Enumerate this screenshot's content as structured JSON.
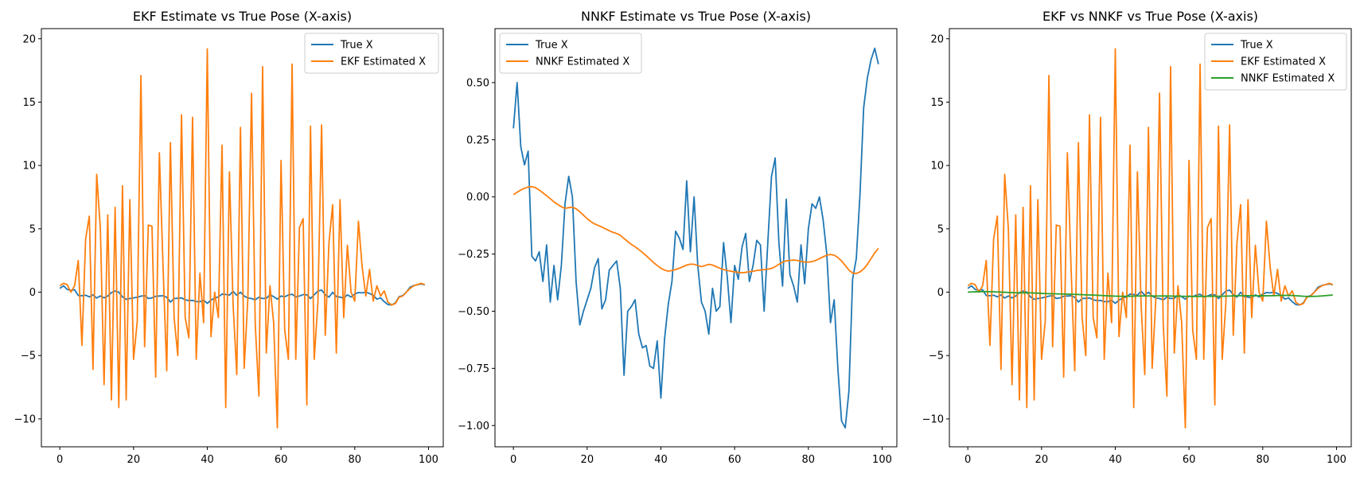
{
  "colors": {
    "true": "#1f77b4",
    "ekf": "#ff7f0e",
    "nnkf": "#2ca02c"
  },
  "chart_data": [
    {
      "type": "line",
      "title": "EKF Estimate vs True Pose (X-axis)",
      "xlim": [
        -5,
        104
      ],
      "ylim": [
        -12.2,
        20.8
      ],
      "xticks": [
        0,
        20,
        40,
        60,
        80,
        100
      ],
      "yticks": [
        -10,
        -5,
        0,
        5,
        10,
        15,
        20
      ],
      "xticklabels": [
        "0",
        "20",
        "40",
        "60",
        "80",
        "100"
      ],
      "yticklabels": [
        "−10",
        "−5",
        "0",
        "5",
        "10",
        "15",
        "20"
      ],
      "legend": "top-right",
      "series": [
        {
          "name": "True X",
          "color_key": "true",
          "values": [
            0.3,
            0.5,
            0.22,
            0.14,
            0.2,
            -0.26,
            -0.28,
            -0.24,
            -0.37,
            -0.21,
            -0.46,
            -0.3,
            -0.45,
            -0.3,
            -0.03,
            0.09,
            0.0,
            -0.37,
            -0.56,
            -0.5,
            -0.45,
            -0.4,
            -0.31,
            -0.27,
            -0.49,
            -0.45,
            -0.32,
            -0.3,
            -0.28,
            -0.4,
            -0.78,
            -0.5,
            -0.48,
            -0.45,
            -0.6,
            -0.66,
            -0.65,
            -0.74,
            -0.75,
            -0.63,
            -0.88,
            -0.62,
            -0.47,
            -0.37,
            -0.15,
            -0.18,
            -0.23,
            0.07,
            -0.24,
            0.0,
            -0.3,
            -0.46,
            -0.5,
            -0.6,
            -0.4,
            -0.5,
            -0.48,
            -0.2,
            -0.35,
            -0.55,
            -0.3,
            -0.36,
            -0.22,
            -0.16,
            -0.37,
            -0.3,
            -0.19,
            -0.21,
            -0.5,
            -0.2,
            0.09,
            0.17,
            -0.2,
            -0.39,
            -0.01,
            -0.34,
            -0.39,
            -0.46,
            -0.21,
            -0.38,
            -0.14,
            -0.03,
            -0.05,
            0.0,
            -0.1,
            -0.25,
            -0.55,
            -0.45,
            -0.75,
            -0.98,
            -1.01,
            -0.85,
            -0.36,
            -0.27,
            0.01,
            0.39,
            0.52,
            0.6,
            0.65,
            0.58
          ]
        },
        {
          "name": "EKF Estimated X",
          "color_key": "ekf",
          "values": [
            0.5,
            0.7,
            0.6,
            0.0,
            0.5,
            2.5,
            -4.2,
            4.2,
            6.0,
            -6.1,
            9.3,
            5.0,
            -7.3,
            6.1,
            -8.5,
            6.7,
            -9.1,
            8.4,
            -8.5,
            7.3,
            -5.3,
            -2.3,
            17.1,
            -4.3,
            5.3,
            5.2,
            -6.7,
            11.0,
            2.0,
            -6.2,
            11.8,
            -2.0,
            -5.0,
            14.0,
            -2.0,
            -3.6,
            13.8,
            -5.3,
            1.5,
            -2.4,
            19.2,
            -3.5,
            0.0,
            -2.0,
            11.6,
            -9.1,
            9.5,
            -1.0,
            -6.5,
            13.0,
            -6.0,
            -0.5,
            15.7,
            -2.5,
            -8.2,
            17.8,
            -4.8,
            0.5,
            -2.4,
            -10.7,
            10.4,
            -3.0,
            -5.3,
            18.0,
            -5.3,
            5.1,
            5.8,
            -8.9,
            13.1,
            -5.3,
            -0.8,
            13.2,
            -3.4,
            3.9,
            6.9,
            -4.8,
            7.3,
            -2.0,
            3.7,
            0.0,
            -0.7,
            5.6,
            2.0,
            -0.3,
            1.8,
            -0.7,
            0.5,
            -0.3,
            0.1,
            -0.8,
            -1.0,
            -0.9,
            -0.4,
            -0.3,
            0.0,
            0.3,
            0.5,
            0.6,
            0.7,
            0.6
          ]
        }
      ]
    },
    {
      "type": "line",
      "title": "NNKF Estimate vs True Pose (X-axis)",
      "xlim": [
        -5,
        104
      ],
      "ylim": [
        -1.093,
        0.736
      ],
      "xticks": [
        0,
        20,
        40,
        60,
        80,
        100
      ],
      "yticks": [
        -1.0,
        -0.75,
        -0.5,
        -0.25,
        0.0,
        0.25,
        0.5
      ],
      "xticklabels": [
        "0",
        "20",
        "40",
        "60",
        "80",
        "100"
      ],
      "yticklabels": [
        "−1.00",
        "−0.75",
        "−0.50",
        "−0.25",
        "0.00",
        "0.25",
        "0.50"
      ],
      "legend": "top-left",
      "series": [
        {
          "name": "True X",
          "color_key": "true",
          "values": [
            0.3,
            0.5,
            0.22,
            0.14,
            0.2,
            -0.26,
            -0.28,
            -0.24,
            -0.37,
            -0.21,
            -0.46,
            -0.3,
            -0.45,
            -0.3,
            -0.03,
            0.09,
            0.0,
            -0.37,
            -0.56,
            -0.5,
            -0.45,
            -0.4,
            -0.31,
            -0.27,
            -0.49,
            -0.45,
            -0.32,
            -0.3,
            -0.28,
            -0.4,
            -0.78,
            -0.5,
            -0.48,
            -0.45,
            -0.6,
            -0.66,
            -0.65,
            -0.74,
            -0.75,
            -0.63,
            -0.88,
            -0.62,
            -0.47,
            -0.37,
            -0.15,
            -0.18,
            -0.23,
            0.07,
            -0.24,
            0.0,
            -0.3,
            -0.46,
            -0.5,
            -0.6,
            -0.4,
            -0.5,
            -0.48,
            -0.2,
            -0.35,
            -0.55,
            -0.3,
            -0.36,
            -0.22,
            -0.16,
            -0.37,
            -0.3,
            -0.19,
            -0.21,
            -0.5,
            -0.2,
            0.09,
            0.17,
            -0.2,
            -0.39,
            -0.01,
            -0.34,
            -0.39,
            -0.46,
            -0.21,
            -0.38,
            -0.14,
            -0.03,
            -0.05,
            0.0,
            -0.1,
            -0.25,
            -0.55,
            -0.45,
            -0.75,
            -0.98,
            -1.01,
            -0.85,
            -0.36,
            -0.27,
            0.01,
            0.39,
            0.52,
            0.6,
            0.65,
            0.58
          ]
        },
        {
          "name": "NNKF Estimated X",
          "color_key": "ekf",
          "values": [
            0.01,
            0.02,
            0.03,
            0.038,
            0.043,
            0.045,
            0.04,
            0.03,
            0.018,
            0.005,
            -0.008,
            -0.022,
            -0.033,
            -0.043,
            -0.05,
            -0.047,
            -0.045,
            -0.052,
            -0.065,
            -0.08,
            -0.095,
            -0.108,
            -0.118,
            -0.125,
            -0.132,
            -0.14,
            -0.148,
            -0.155,
            -0.16,
            -0.168,
            -0.182,
            -0.195,
            -0.208,
            -0.218,
            -0.23,
            -0.243,
            -0.257,
            -0.272,
            -0.287,
            -0.3,
            -0.312,
            -0.32,
            -0.325,
            -0.322,
            -0.318,
            -0.312,
            -0.305,
            -0.298,
            -0.294,
            -0.295,
            -0.3,
            -0.305,
            -0.3,
            -0.295,
            -0.298,
            -0.305,
            -0.312,
            -0.318,
            -0.322,
            -0.325,
            -0.328,
            -0.33,
            -0.332,
            -0.33,
            -0.327,
            -0.325,
            -0.322,
            -0.32,
            -0.318,
            -0.316,
            -0.313,
            -0.305,
            -0.295,
            -0.285,
            -0.28,
            -0.278,
            -0.276,
            -0.278,
            -0.282,
            -0.285,
            -0.285,
            -0.283,
            -0.278,
            -0.27,
            -0.262,
            -0.255,
            -0.252,
            -0.255,
            -0.265,
            -0.28,
            -0.3,
            -0.32,
            -0.333,
            -0.335,
            -0.328,
            -0.315,
            -0.295,
            -0.27,
            -0.245,
            -0.225
          ]
        }
      ]
    },
    {
      "type": "line",
      "title": "EKF vs NNKF vs True Pose (X-axis)",
      "xlim": [
        -5,
        104
      ],
      "ylim": [
        -12.2,
        20.8
      ],
      "xticks": [
        0,
        20,
        40,
        60,
        80,
        100
      ],
      "yticks": [
        -10,
        -5,
        0,
        5,
        10,
        15,
        20
      ],
      "xticklabels": [
        "0",
        "20",
        "40",
        "60",
        "80",
        "100"
      ],
      "yticklabels": [
        "−10",
        "−5",
        "0",
        "5",
        "10",
        "15",
        "20"
      ],
      "legend": "top-right",
      "series": [
        {
          "name": "True X",
          "color_key": "true",
          "values": [
            0.3,
            0.5,
            0.22,
            0.14,
            0.2,
            -0.26,
            -0.28,
            -0.24,
            -0.37,
            -0.21,
            -0.46,
            -0.3,
            -0.45,
            -0.3,
            -0.03,
            0.09,
            0.0,
            -0.37,
            -0.56,
            -0.5,
            -0.45,
            -0.4,
            -0.31,
            -0.27,
            -0.49,
            -0.45,
            -0.32,
            -0.3,
            -0.28,
            -0.4,
            -0.78,
            -0.5,
            -0.48,
            -0.45,
            -0.6,
            -0.66,
            -0.65,
            -0.74,
            -0.75,
            -0.63,
            -0.88,
            -0.62,
            -0.47,
            -0.37,
            -0.15,
            -0.18,
            -0.23,
            0.07,
            -0.24,
            0.0,
            -0.3,
            -0.46,
            -0.5,
            -0.6,
            -0.4,
            -0.5,
            -0.48,
            -0.2,
            -0.35,
            -0.55,
            -0.3,
            -0.36,
            -0.22,
            -0.16,
            -0.37,
            -0.3,
            -0.19,
            -0.21,
            -0.5,
            -0.2,
            0.09,
            0.17,
            -0.2,
            -0.39,
            -0.01,
            -0.34,
            -0.39,
            -0.46,
            -0.21,
            -0.38,
            -0.14,
            -0.03,
            -0.05,
            0.0,
            -0.1,
            -0.25,
            -0.55,
            -0.45,
            -0.75,
            -0.98,
            -1.01,
            -0.85,
            -0.36,
            -0.27,
            0.01,
            0.39,
            0.52,
            0.6,
            0.65,
            0.58
          ]
        },
        {
          "name": "EKF Estimated X",
          "color_key": "ekf",
          "values": [
            0.5,
            0.7,
            0.6,
            0.0,
            0.5,
            2.5,
            -4.2,
            4.2,
            6.0,
            -6.1,
            9.3,
            5.0,
            -7.3,
            6.1,
            -8.5,
            6.7,
            -9.1,
            8.4,
            -8.5,
            7.3,
            -5.3,
            -2.3,
            17.1,
            -4.3,
            5.3,
            5.2,
            -6.7,
            11.0,
            2.0,
            -6.2,
            11.8,
            -2.0,
            -5.0,
            14.0,
            -2.0,
            -3.6,
            13.8,
            -5.3,
            1.5,
            -2.4,
            19.2,
            -3.5,
            0.0,
            -2.0,
            11.6,
            -9.1,
            9.5,
            -1.0,
            -6.5,
            13.0,
            -6.0,
            -0.5,
            15.7,
            -2.5,
            -8.2,
            17.8,
            -4.8,
            0.5,
            -2.4,
            -10.7,
            10.4,
            -3.0,
            -5.3,
            18.0,
            -5.3,
            5.1,
            5.8,
            -8.9,
            13.1,
            -5.3,
            -0.8,
            13.2,
            -3.4,
            3.9,
            6.9,
            -4.8,
            7.3,
            -2.0,
            3.7,
            0.0,
            -0.7,
            5.6,
            2.0,
            -0.3,
            1.8,
            -0.7,
            0.5,
            -0.3,
            0.1,
            -0.8,
            -1.0,
            -0.9,
            -0.4,
            -0.3,
            0.0,
            0.3,
            0.5,
            0.6,
            0.7,
            0.6
          ]
        },
        {
          "name": "NNKF Estimated X",
          "color_key": "nnkf",
          "values": [
            0.01,
            0.02,
            0.03,
            0.038,
            0.043,
            0.045,
            0.04,
            0.03,
            0.018,
            0.005,
            -0.008,
            -0.022,
            -0.033,
            -0.043,
            -0.05,
            -0.047,
            -0.045,
            -0.052,
            -0.065,
            -0.08,
            -0.095,
            -0.108,
            -0.118,
            -0.125,
            -0.132,
            -0.14,
            -0.148,
            -0.155,
            -0.16,
            -0.168,
            -0.182,
            -0.195,
            -0.208,
            -0.218,
            -0.23,
            -0.243,
            -0.257,
            -0.272,
            -0.287,
            -0.3,
            -0.312,
            -0.32,
            -0.325,
            -0.322,
            -0.318,
            -0.312,
            -0.305,
            -0.298,
            -0.294,
            -0.295,
            -0.3,
            -0.305,
            -0.3,
            -0.295,
            -0.298,
            -0.305,
            -0.312,
            -0.318,
            -0.322,
            -0.325,
            -0.328,
            -0.33,
            -0.332,
            -0.33,
            -0.327,
            -0.325,
            -0.322,
            -0.32,
            -0.318,
            -0.316,
            -0.313,
            -0.305,
            -0.295,
            -0.285,
            -0.28,
            -0.278,
            -0.276,
            -0.278,
            -0.282,
            -0.285,
            -0.285,
            -0.283,
            -0.278,
            -0.27,
            -0.262,
            -0.255,
            -0.252,
            -0.255,
            -0.265,
            -0.28,
            -0.3,
            -0.32,
            -0.333,
            -0.335,
            -0.328,
            -0.315,
            -0.295,
            -0.27,
            -0.245,
            -0.225
          ]
        }
      ]
    }
  ]
}
